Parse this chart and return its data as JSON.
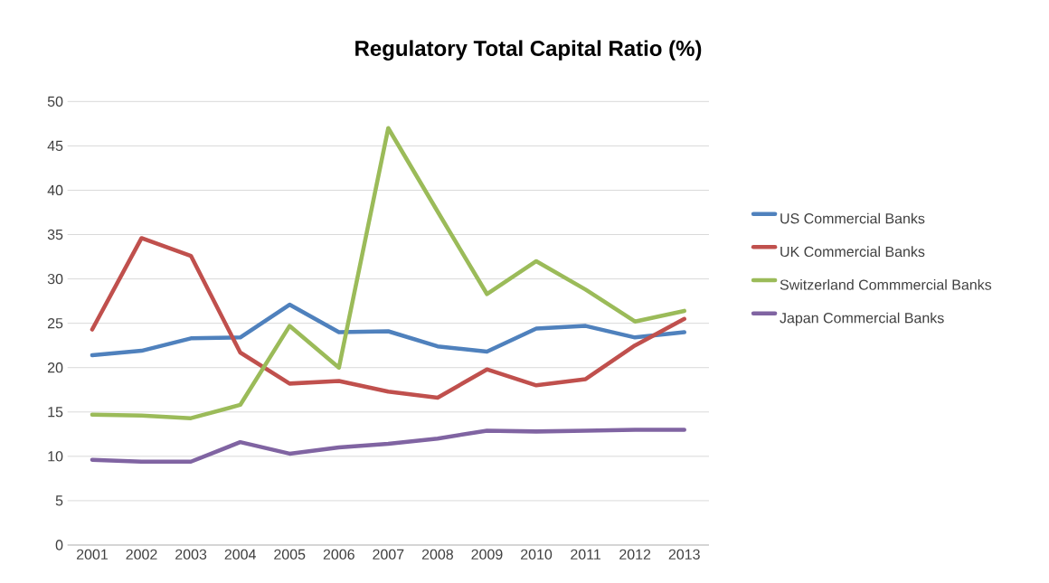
{
  "chart_data": {
    "type": "line",
    "title": "Regulatory Total Capital Ratio (%)",
    "categories": [
      "2001",
      "2002",
      "2003",
      "2004",
      "2005",
      "2006",
      "2007",
      "2008",
      "2009",
      "2010",
      "2011",
      "2012",
      "2013"
    ],
    "series": [
      {
        "name": "US Commercial Banks",
        "color": "#4f81bd",
        "values": [
          21.4,
          21.9,
          23.3,
          23.4,
          27.1,
          24.0,
          24.1,
          22.4,
          21.8,
          24.4,
          24.7,
          23.4,
          24.0
        ]
      },
      {
        "name": "UK Commercial Banks",
        "color": "#c0504d",
        "values": [
          24.3,
          34.6,
          32.6,
          21.7,
          18.2,
          18.5,
          17.3,
          16.6,
          19.8,
          18.0,
          18.7,
          22.5,
          25.5
        ]
      },
      {
        "name": "Switzerland Commmercial Banks",
        "color": "#9bbb59",
        "values": [
          14.7,
          14.6,
          14.3,
          15.8,
          24.7,
          20.0,
          47.0,
          37.6,
          28.3,
          32.0,
          28.8,
          25.2,
          26.4
        ]
      },
      {
        "name": "Japan Commercial Banks",
        "color": "#8064a2",
        "values": [
          9.6,
          9.4,
          9.4,
          11.6,
          10.3,
          11.0,
          11.4,
          12.0,
          12.9,
          12.8,
          12.9,
          13.0,
          13.0
        ]
      }
    ],
    "ylim": [
      0,
      50
    ],
    "yticks": [
      0,
      5,
      10,
      15,
      20,
      25,
      30,
      35,
      40,
      45,
      50
    ],
    "grid": "y",
    "legend": "right",
    "marker": "none",
    "line_style": "solid"
  }
}
